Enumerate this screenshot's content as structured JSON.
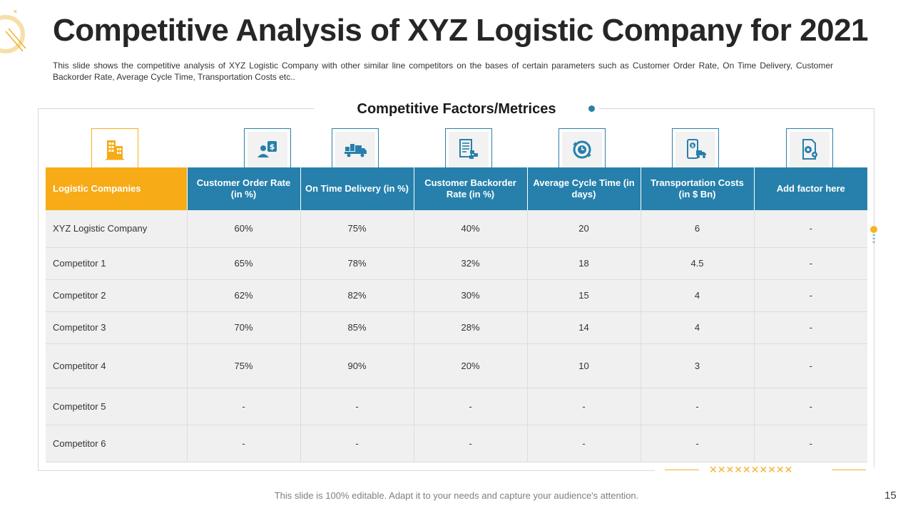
{
  "slide": {
    "title": "Competitive Analysis of XYZ Logistic Company for 2021",
    "description": "This slide shows the competitive analysis of XYZ Logistic Company with other similar line competitors on the bases of certain parameters such as Customer Order Rate, On Time Delivery, Customer Backorder Rate, Average Cycle Time, Transportation Costs etc..",
    "section_title": "Competitive Factors/Metrices",
    "footer": "This slide is 100% editable. Adapt it to your needs and capture your audience's attention.",
    "page_number": "15",
    "deco_x": "✕✕✕✕✕✕✕✕✕✕"
  },
  "colors": {
    "accent_orange": "#f7ab16",
    "accent_blue": "#2680ab",
    "cell_bg": "#f0f0f0"
  },
  "table": {
    "headers": [
      {
        "label": "Logistic Companies",
        "icon": "building-icon"
      },
      {
        "label": "Customer Order Rate (in %)",
        "icon": "customer-dollar-icon"
      },
      {
        "label": "On Time Delivery (in %)",
        "icon": "delivery-truck-icon"
      },
      {
        "label": "Customer Backorder Rate (in %)",
        "icon": "backorder-checklist-icon"
      },
      {
        "label": "Average Cycle Time (in days)",
        "icon": "cycle-clock-icon"
      },
      {
        "label": "Transportation Costs (in $ Bn)",
        "icon": "transport-cost-icon"
      },
      {
        "label": "Add factor here",
        "icon": "settings-document-icon"
      }
    ],
    "rows": [
      {
        "cells": [
          "XYZ  Logistic Company",
          "60%",
          "75%",
          "40%",
          "20",
          "6",
          "-"
        ]
      },
      {
        "cells": [
          "Competitor 1",
          "65%",
          "78%",
          "32%",
          "18",
          "4.5",
          "-"
        ]
      },
      {
        "cells": [
          "Competitor 2",
          "62%",
          "82%",
          "30%",
          "15",
          "4",
          "-"
        ]
      },
      {
        "cells": [
          "Competitor 3",
          "70%",
          "85%",
          "28%",
          "14",
          "4",
          "-"
        ]
      },
      {
        "cells": [
          "Competitor 4",
          "75%",
          "90%",
          "20%",
          "10",
          "3",
          "-"
        ]
      },
      {
        "cells": [
          "Competitor 5",
          "-",
          "-",
          "-",
          "-",
          "-",
          "-"
        ]
      },
      {
        "cells": [
          "Competitor 6",
          "-",
          "-",
          "-",
          "-",
          "-",
          "-"
        ]
      }
    ]
  }
}
